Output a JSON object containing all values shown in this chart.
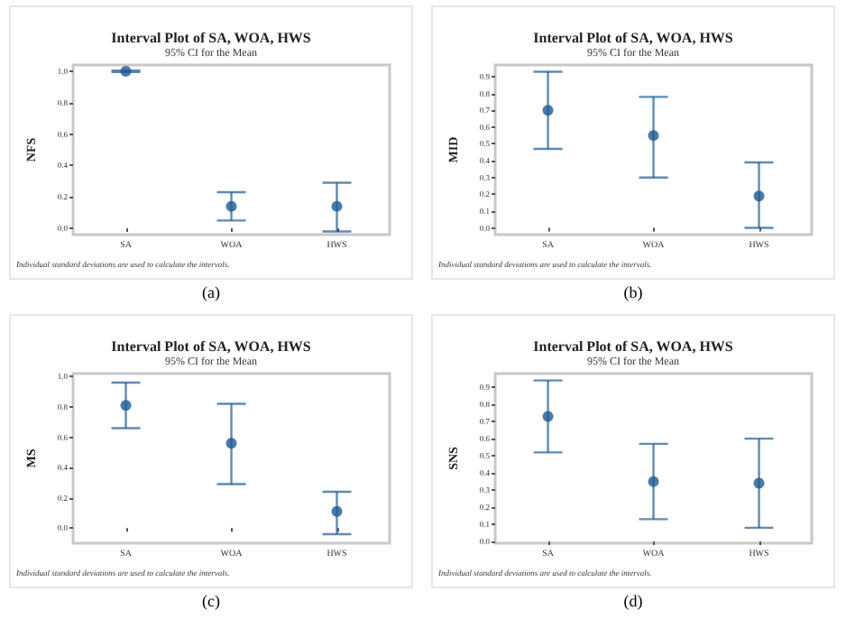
{
  "chart_data": [
    {
      "type": "scatter",
      "title": "Interval Plot of SA, WOA, HWS",
      "subtitle": "95% CI for the Mean",
      "ylabel": "NFS",
      "categories": [
        "SA",
        "WOA",
        "HWS"
      ],
      "marker": "circle",
      "series": [
        {
          "color": "#1a5a96",
          "values": [
            1.0,
            0.14,
            0.14
          ],
          "errors": [
            [
              0.995,
              1.005
            ],
            [
              0.05,
              0.23
            ],
            [
              -0.02,
              0.29
            ]
          ]
        }
      ],
      "ylim": [
        -0.04,
        1.04
      ],
      "yticks": [
        {
          "value": 0,
          "label": "0.0"
        },
        {
          "value": 0.2,
          "label": "0.2"
        },
        {
          "value": 0.4,
          "label": "0.4"
        },
        {
          "value": 0.6,
          "label": "0.6"
        },
        {
          "value": 0.8,
          "label": "0.8"
        },
        {
          "value": 1.0,
          "label": "1.0"
        }
      ],
      "annotations": [
        "Individual standard deviations are used to calculate the intervals.",
        "(a)"
      ]
    },
    {
      "type": "scatter",
      "title": "Interval Plot of SA, WOA, HWS",
      "subtitle": "95% CI for the Mean",
      "ylabel": "MID",
      "categories": [
        "SA",
        "WOA",
        "HWS"
      ],
      "marker": "circle",
      "series": [
        {
          "color": "#1a5a96",
          "values": [
            0.7,
            0.55,
            0.19
          ],
          "errors": [
            [
              0.47,
              0.93
            ],
            [
              0.3,
              0.78
            ],
            [
              0.0,
              0.39
            ]
          ]
        }
      ],
      "ylim": [
        -0.04,
        0.97
      ],
      "yticks": [
        {
          "value": 0,
          "label": "0.0"
        },
        {
          "value": 0.1,
          "label": "0.1"
        },
        {
          "value": 0.2,
          "label": "0.2"
        },
        {
          "value": 0.3,
          "label": "0.3"
        },
        {
          "value": 0.4,
          "label": "0.4"
        },
        {
          "value": 0.5,
          "label": "0.5"
        },
        {
          "value": 0.6,
          "label": "0.6"
        },
        {
          "value": 0.7,
          "label": "0.7"
        },
        {
          "value": 0.8,
          "label": "0.8"
        },
        {
          "value": 0.9,
          "label": "0.9"
        }
      ],
      "annotations": [
        "Individual standard deviations are used to calculate the intervals.",
        "(b)"
      ]
    },
    {
      "type": "scatter",
      "title": "Interval Plot of SA, WOA, HWS",
      "subtitle": "95% CI for the Mean",
      "ylabel": "MS",
      "categories": [
        "SA",
        "WOA",
        "HWS"
      ],
      "marker": "circle",
      "series": [
        {
          "color": "#1a5a96",
          "values": [
            0.81,
            0.56,
            0.11
          ],
          "errors": [
            [
              0.66,
              0.96
            ],
            [
              0.29,
              0.82
            ],
            [
              -0.04,
              0.24
            ]
          ]
        }
      ],
      "ylim": [
        -0.1,
        1.02
      ],
      "yticks": [
        {
          "value": 0,
          "label": "0.0"
        },
        {
          "value": 0.2,
          "label": "0.2"
        },
        {
          "value": 0.4,
          "label": "0.4"
        },
        {
          "value": 0.6,
          "label": "0.6"
        },
        {
          "value": 0.8,
          "label": "0.8"
        },
        {
          "value": 1.0,
          "label": "1.0"
        }
      ],
      "annotations": [
        "Individual standard deviations are used to calculate the intervals.",
        "(c)"
      ]
    },
    {
      "type": "scatter",
      "title": "Interval Plot of SA, WOA, HWS",
      "subtitle": "95% CI for the Mean",
      "ylabel": "SNS",
      "categories": [
        "SA",
        "WOA",
        "HWS"
      ],
      "marker": "circle",
      "series": [
        {
          "color": "#1a5a96",
          "values": [
            0.73,
            0.35,
            0.34
          ],
          "errors": [
            [
              0.52,
              0.94
            ],
            [
              0.13,
              0.57
            ],
            [
              0.08,
              0.6
            ]
          ]
        }
      ],
      "ylim": [
        -0.01,
        0.98
      ],
      "yticks": [
        {
          "value": 0,
          "label": "0.0"
        },
        {
          "value": 0.1,
          "label": "0.1"
        },
        {
          "value": 0.2,
          "label": "0.2"
        },
        {
          "value": 0.3,
          "label": "0.3"
        },
        {
          "value": 0.4,
          "label": "0.4"
        },
        {
          "value": 0.5,
          "label": "0.5"
        },
        {
          "value": 0.6,
          "label": "0.6"
        },
        {
          "value": 0.7,
          "label": "0.7"
        },
        {
          "value": 0.8,
          "label": "0.8"
        },
        {
          "value": 0.9,
          "label": "0.9"
        }
      ],
      "annotations": [
        "Individual standard deviations are used to calculate the intervals.",
        "(d)"
      ]
    }
  ]
}
